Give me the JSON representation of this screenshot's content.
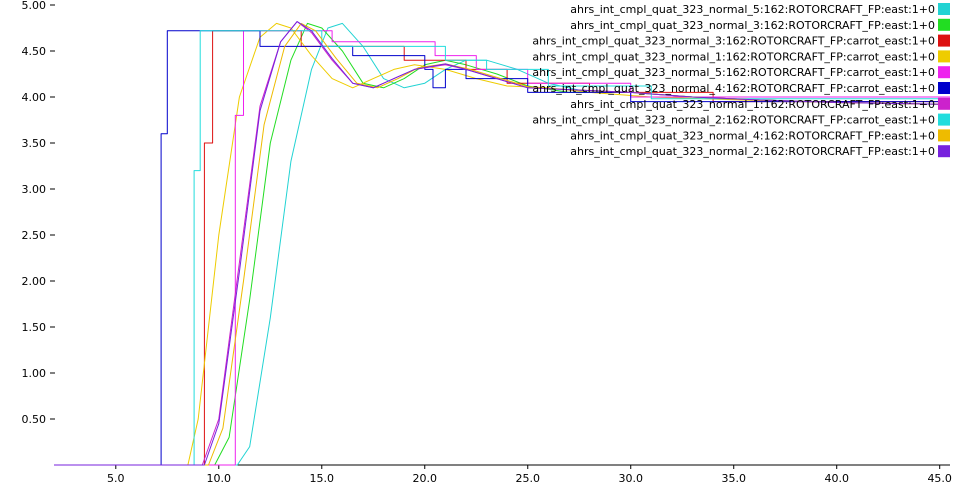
{
  "chart_data": {
    "type": "line",
    "title": "",
    "xlabel": "",
    "ylabel": "",
    "xlim": [
      2,
      45.5
    ],
    "ylim": [
      0,
      5.0
    ],
    "x_ticks": [
      5,
      10,
      15,
      20,
      25,
      30,
      35,
      40,
      45
    ],
    "x_tick_labels": [
      "5.0",
      "10.0",
      "15.0",
      "20.0",
      "25.0",
      "30.0",
      "35.0",
      "40.0",
      "45.0"
    ],
    "y_ticks": [
      0.5,
      1.0,
      1.5,
      2.0,
      2.5,
      3.0,
      3.5,
      4.0,
      4.5,
      5.0
    ],
    "y_tick_labels": [
      "0.50",
      "1.00",
      "1.50",
      "2.00",
      "2.50",
      "3.00",
      "3.50",
      "4.00",
      "4.50",
      "5.00"
    ],
    "grid": false,
    "legend_position": "top-right",
    "series": [
      {
        "name": "ahrs_int_cmpl_quat_323_normal_5:162:ROTORCRAFT_FP:east:1+0",
        "color": "#22d3d3",
        "x": [
          2,
          10.9,
          11.5,
          12.5,
          13.5,
          14.5,
          15.3,
          16.0,
          17.0,
          18.0,
          19.0,
          20.0,
          21.0,
          22.0,
          23.0,
          24.5,
          26.0,
          28.0,
          30.0,
          33.0,
          36.0,
          40.0,
          45.5
        ],
        "y": [
          0,
          0,
          0.2,
          1.6,
          3.3,
          4.3,
          4.75,
          4.8,
          4.55,
          4.2,
          4.1,
          4.15,
          4.3,
          4.4,
          4.4,
          4.3,
          4.15,
          4.05,
          4.05,
          4.0,
          3.97,
          3.94,
          3.92
        ]
      },
      {
        "name": "ahrs_int_cmpl_quat_323_normal_3:162:ROTORCRAFT_FP:east:1+0",
        "color": "#22dd22",
        "x": [
          2,
          9.8,
          10.5,
          11.5,
          12.5,
          13.5,
          14.3,
          15.0,
          16.0,
          17.0,
          18.0,
          19.0,
          20.0,
          21.0,
          22.0,
          23.5,
          25.0,
          27.0,
          30.0,
          33.0,
          36.0,
          40.0,
          45.5
        ],
        "y": [
          0,
          0,
          0.3,
          1.8,
          3.5,
          4.4,
          4.8,
          4.75,
          4.5,
          4.15,
          4.1,
          4.2,
          4.35,
          4.4,
          4.35,
          4.25,
          4.12,
          4.05,
          4.05,
          4.0,
          3.97,
          3.94,
          3.92
        ]
      },
      {
        "name": "ahrs_int_cmpl_quat_323_normal_3:162:ROTORCRAFT_FP:carrot_east:1+0",
        "color": "#dd1111",
        "x": [
          2,
          9.3,
          9.3,
          9.7,
          9.7,
          14.0,
          14.0,
          19.0,
          19.0,
          22.0,
          22.0,
          24.0,
          24.0,
          28.0,
          28.0,
          34.0,
          34.0,
          45.5
        ],
        "y": [
          0,
          0,
          3.5,
          3.5,
          4.72,
          4.72,
          4.55,
          4.55,
          4.4,
          4.4,
          4.3,
          4.3,
          4.15,
          4.15,
          4.05,
          4.05,
          3.95,
          3.95
        ]
      },
      {
        "name": "ahrs_int_cmpl_quat_323_normal_1:162:ROTORCRAFT_FP:carrot_east:1+0",
        "color": "#eecc00",
        "x": [
          2,
          8.5,
          9.0,
          10.0,
          11.0,
          12.0,
          12.8,
          13.5,
          14.5,
          15.5,
          16.5,
          17.5,
          18.5,
          19.5,
          21.0,
          22.5,
          24.0,
          26.0,
          28.0,
          31.0,
          35.0,
          40.0,
          45.5
        ],
        "y": [
          0,
          0,
          0.5,
          2.5,
          4.0,
          4.65,
          4.8,
          4.75,
          4.45,
          4.2,
          4.1,
          4.2,
          4.3,
          4.35,
          4.3,
          4.2,
          4.12,
          4.1,
          4.05,
          4.0,
          3.97,
          3.94,
          3.92
        ]
      },
      {
        "name": "ahrs_int_cmpl_quat_323_normal_5:162:ROTORCRAFT_FP:carrot_east:1+0",
        "color": "#ee22ee",
        "x": [
          2,
          10.8,
          10.8,
          11.2,
          11.2,
          15.5,
          15.5,
          20.5,
          20.5,
          22.5,
          22.5,
          25.0,
          25.0,
          30.0,
          30.0,
          45.5
        ],
        "y": [
          0,
          0,
          3.8,
          3.8,
          4.72,
          4.72,
          4.6,
          4.6,
          4.45,
          4.45,
          4.3,
          4.3,
          4.15,
          4.15,
          4.0,
          4.0
        ]
      },
      {
        "name": "ahrs_int_cmpl_quat_323_normal_4:162:ROTORCRAFT_FP:carrot_east:1+0",
        "color": "#0000cc",
        "x": [
          2,
          7.2,
          7.2,
          7.5,
          7.5,
          12.0,
          12.0,
          16.5,
          16.5,
          20.0,
          20.0,
          20.4,
          20.4,
          21.0,
          21.0,
          22.0,
          22.0,
          25.0,
          25.0,
          30.0,
          30.0,
          45.5
        ],
        "y": [
          0,
          0,
          3.6,
          3.6,
          4.72,
          4.72,
          4.55,
          4.55,
          4.45,
          4.45,
          4.3,
          4.3,
          4.1,
          4.1,
          4.3,
          4.3,
          4.2,
          4.2,
          4.05,
          4.05,
          3.95,
          3.95
        ]
      },
      {
        "name": "ahrs_int_cmpl_quat_323_normal_1:162:ROTORCRAFT_FP:east:1+0",
        "color": "#cc22cc",
        "x": [
          2,
          9.2,
          10.0,
          11.0,
          12.0,
          13.0,
          13.8,
          14.5,
          15.5,
          16.5,
          17.5,
          18.5,
          19.5,
          21.0,
          22.0,
          23.5,
          25.0,
          27.0,
          30.0,
          33.0,
          36.0,
          40.0,
          45.5
        ],
        "y": [
          0,
          0,
          0.5,
          2.2,
          3.9,
          4.6,
          4.82,
          4.7,
          4.4,
          4.15,
          4.1,
          4.2,
          4.3,
          4.35,
          4.3,
          4.2,
          4.1,
          4.08,
          4.05,
          4.0,
          3.97,
          3.94,
          3.92
        ]
      },
      {
        "name": "ahrs_int_cmpl_quat_323_normal_2:162:ROTORCRAFT_FP:carrot_east:1+0",
        "color": "#22dddd",
        "x": [
          2,
          8.8,
          8.8,
          9.1,
          9.1,
          15.0,
          15.0,
          21.0,
          21.0,
          23.0,
          23.0,
          26.0,
          26.0,
          31.0,
          31.0,
          45.5
        ],
        "y": [
          0,
          0,
          3.2,
          3.2,
          4.72,
          4.72,
          4.55,
          4.55,
          4.4,
          4.4,
          4.3,
          4.3,
          4.12,
          4.12,
          3.98,
          3.98
        ]
      },
      {
        "name": "ahrs_int_cmpl_quat_323_normal_4:162:ROTORCRAFT_FP:east:1+0",
        "color": "#eebb00",
        "x": [
          2,
          9.5,
          10.2,
          11.2,
          12.2,
          13.2,
          14.0,
          14.7,
          15.7,
          16.7,
          17.7,
          18.7,
          19.7,
          21.0,
          22.2,
          23.7,
          25.2,
          27.0,
          30.0,
          33.0,
          36.0,
          40.0,
          45.5
        ],
        "y": [
          0,
          0,
          0.4,
          2.0,
          3.7,
          4.55,
          4.8,
          4.72,
          4.42,
          4.15,
          4.1,
          4.2,
          4.32,
          4.36,
          4.3,
          4.2,
          4.1,
          4.08,
          4.05,
          4.0,
          3.97,
          3.94,
          3.92
        ]
      },
      {
        "name": "ahrs_int_cmpl_quat_323_normal_2:162:ROTORCRAFT_FP:east:1+0",
        "color": "#7722dd",
        "x": [
          2,
          9.3,
          10.0,
          11.0,
          12.0,
          13.0,
          13.8,
          14.5,
          15.5,
          16.5,
          17.5,
          18.5,
          19.5,
          21.0,
          22.0,
          23.5,
          25.0,
          27.0,
          30.0,
          33.0,
          36.0,
          40.0,
          45.5
        ],
        "y": [
          0,
          0,
          0.45,
          2.1,
          3.85,
          4.6,
          4.82,
          4.72,
          4.42,
          4.15,
          4.1,
          4.2,
          4.3,
          4.36,
          4.3,
          4.2,
          4.1,
          4.08,
          4.05,
          4.0,
          3.97,
          3.94,
          3.92
        ]
      }
    ]
  }
}
